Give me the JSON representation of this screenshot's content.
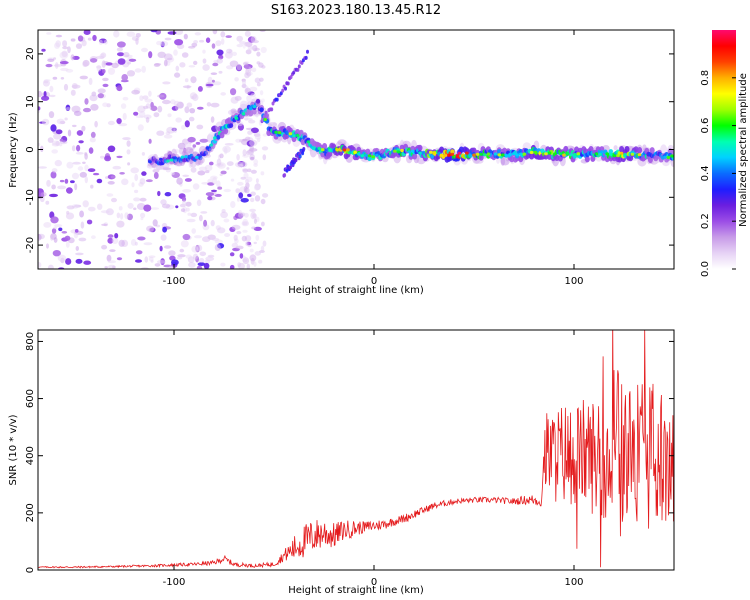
{
  "page": {
    "title": "S163.2023.180.13.45.R12"
  },
  "chart_data": [
    {
      "id": "spectrogram",
      "type": "heatmap",
      "title": "",
      "xlabel": "Height of straight line (km)",
      "ylabel": "Frequency (Hz)",
      "xlim": [
        -168,
        150
      ],
      "ylim": [
        -25,
        25
      ],
      "xticks": [
        -100,
        0,
        100
      ],
      "yticks": [
        -20,
        -10,
        0,
        10,
        20
      ],
      "colorbar": {
        "label": "Normalized spectral amplitude",
        "range": [
          0,
          1
        ],
        "ticks": [
          0.0,
          0.2,
          0.4,
          0.6,
          0.8
        ],
        "colormap": [
          "#ffffff",
          "#e6d2f5",
          "#c89be8",
          "#9b4de6",
          "#6a1ee0",
          "#1e1eff",
          "#0a6cff",
          "#00d2ff",
          "#00ffb0",
          "#00ff00",
          "#a0ff00",
          "#ffff00",
          "#ffb000",
          "#ff4000",
          "#ff0000",
          "#ff0a6e"
        ]
      },
      "ridge": [
        {
          "x": -112,
          "f": -2.5,
          "a": 0.35
        },
        {
          "x": -100,
          "f": -2,
          "a": 0.45
        },
        {
          "x": -92,
          "f": -1.5,
          "a": 0.4
        },
        {
          "x": -86,
          "f": -1.5,
          "a": 0.35
        },
        {
          "x": -80,
          "f": 2,
          "a": 0.45
        },
        {
          "x": -76,
          "f": 4,
          "a": 0.55
        },
        {
          "x": -70,
          "f": 6,
          "a": 0.5
        },
        {
          "x": -64,
          "f": 8,
          "a": 0.5
        },
        {
          "x": -58,
          "f": 9.5,
          "a": 0.45
        },
        {
          "x": -52,
          "f": 4,
          "a": 0.55
        },
        {
          "x": -44,
          "f": 3.5,
          "a": 0.6
        },
        {
          "x": -36,
          "f": 2.5,
          "a": 0.5
        },
        {
          "x": -30,
          "f": 0.5,
          "a": 0.5
        },
        {
          "x": -24,
          "f": -0.5,
          "a": 0.55
        },
        {
          "x": -16,
          "f": 0,
          "a": 0.75
        },
        {
          "x": -8,
          "f": -1,
          "a": 0.6
        },
        {
          "x": 0,
          "f": -1.5,
          "a": 0.5
        },
        {
          "x": 10,
          "f": -0.5,
          "a": 0.6
        },
        {
          "x": 20,
          "f": -0.5,
          "a": 0.55
        },
        {
          "x": 32,
          "f": -1,
          "a": 0.75
        },
        {
          "x": 42,
          "f": -1,
          "a": 0.95
        },
        {
          "x": 52,
          "f": -1,
          "a": 0.6
        },
        {
          "x": 62,
          "f": -1,
          "a": 0.55
        },
        {
          "x": 72,
          "f": -1,
          "a": 0.55
        },
        {
          "x": 80,
          "f": -0.5,
          "a": 0.75
        },
        {
          "x": 88,
          "f": -1,
          "a": 0.65
        },
        {
          "x": 96,
          "f": -1,
          "a": 0.6
        },
        {
          "x": 106,
          "f": -1,
          "a": 0.6
        },
        {
          "x": 116,
          "f": -1,
          "a": 0.55
        },
        {
          "x": 126,
          "f": -1,
          "a": 0.75
        },
        {
          "x": 136,
          "f": -1,
          "a": 0.55
        },
        {
          "x": 146,
          "f": -1.5,
          "a": 0.5
        }
      ],
      "streaks": [
        {
          "x": [
            -56,
            -33
          ],
          "f": [
            6,
            20
          ],
          "a": 0.3
        },
        {
          "x": [
            -45,
            -35
          ],
          "f": [
            -5,
            0
          ],
          "a": 0.35
        }
      ]
    },
    {
      "id": "snr",
      "type": "line",
      "title": "",
      "xlabel": "Height of straight line (km)",
      "ylabel": "SNR (10 * v/v)",
      "xlim": [
        -168,
        150
      ],
      "ylim": [
        0,
        840
      ],
      "xticks": [
        -100,
        0,
        100
      ],
      "yticks": [
        0,
        200,
        400,
        600,
        800
      ],
      "line_color": "#e41a1c",
      "series": [
        {
          "x": [
            -168,
            -150,
            -130,
            -110,
            -90,
            -80,
            -75,
            -70,
            -60,
            -50,
            -45,
            -40,
            -35,
            -30,
            -25,
            -20,
            -15,
            -10,
            -5,
            0,
            5,
            10,
            15,
            20,
            25,
            30,
            40,
            50,
            60,
            70,
            75,
            80,
            84,
            85,
            90,
            95,
            100,
            105,
            110,
            115,
            120,
            123,
            125,
            130,
            135,
            140,
            145,
            150
          ],
          "y": [
            10,
            10,
            12,
            15,
            20,
            25,
            40,
            20,
            15,
            20,
            50,
            75,
            100,
            120,
            130,
            120,
            140,
            145,
            150,
            155,
            160,
            170,
            180,
            195,
            210,
            225,
            240,
            245,
            245,
            240,
            245,
            245,
            240,
            410,
            400,
            410,
            400,
            410,
            400,
            400,
            410,
            420,
            400,
            410,
            400,
            410,
            390,
            380
          ],
          "noise": [
            2,
            3,
            3,
            4,
            6,
            8,
            12,
            8,
            6,
            8,
            20,
            45,
            60,
            60,
            55,
            45,
            35,
            30,
            20,
            20,
            18,
            15,
            15,
            15,
            12,
            12,
            10,
            10,
            10,
            12,
            15,
            20,
            20,
            110,
            130,
            140,
            140,
            150,
            160,
            170,
            200,
            240,
            200,
            200,
            200,
            200,
            180,
            180
          ]
        }
      ]
    }
  ]
}
